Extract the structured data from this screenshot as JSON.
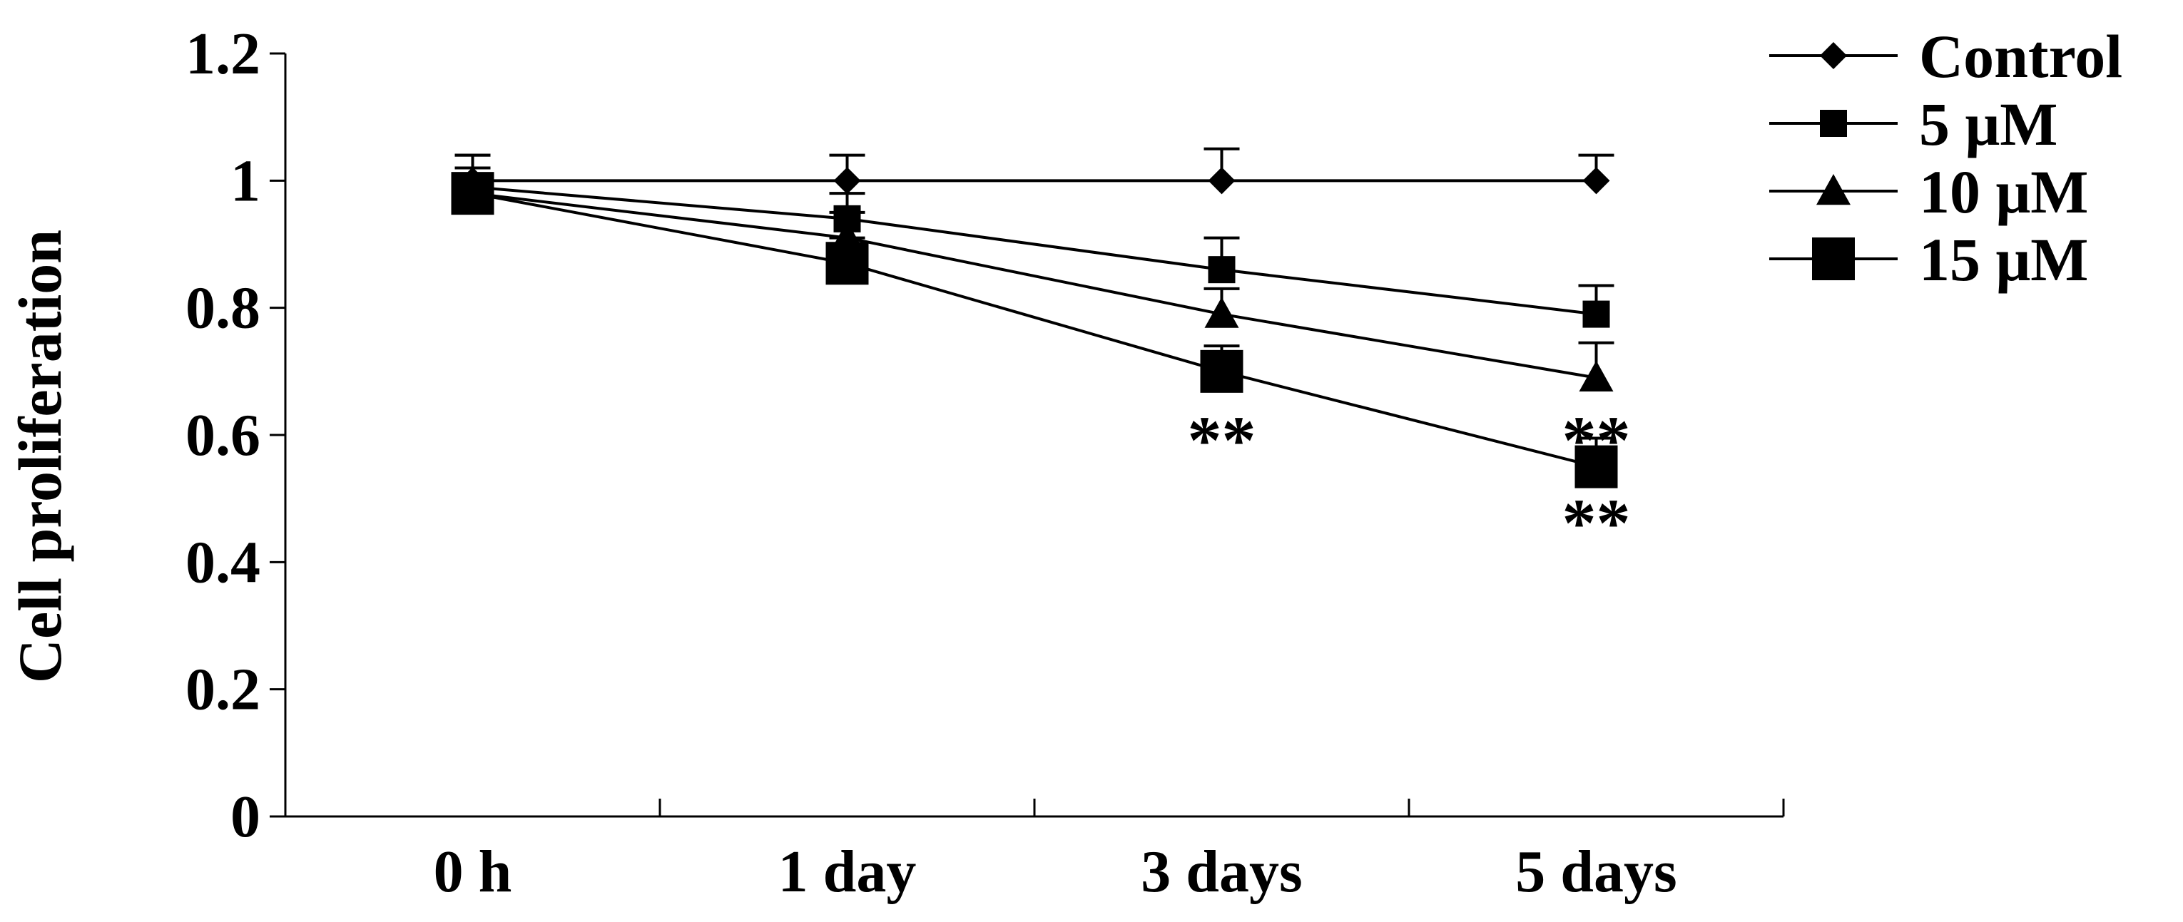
{
  "chart_data": {
    "type": "line",
    "title": "",
    "xlabel": "",
    "ylabel": "Cell proliferation",
    "categories": [
      "0 h",
      "1 day",
      "3 days",
      "5 days"
    ],
    "ylim": [
      0,
      1.2
    ],
    "yticks": [
      "0",
      "0.2",
      "0.4",
      "0.6",
      "0.8",
      "1",
      "1.2"
    ],
    "grid": false,
    "legend_position": "top-right",
    "series": [
      {
        "name": "Control",
        "marker": "diamond",
        "values": [
          1.0,
          1.0,
          1.0,
          1.0
        ],
        "errors": [
          0.04,
          0.04,
          0.05,
          0.04
        ]
      },
      {
        "name": "5 μM",
        "marker": "square",
        "values": [
          0.99,
          0.94,
          0.86,
          0.79
        ],
        "errors": [
          0.05,
          0.04,
          0.05,
          0.045
        ]
      },
      {
        "name": "10 μM",
        "marker": "triangle",
        "values": [
          0.98,
          0.91,
          0.79,
          0.69
        ],
        "errors": [
          0.04,
          0.04,
          0.04,
          0.055
        ]
      },
      {
        "name": "15 μM",
        "marker": "big-square",
        "values": [
          0.98,
          0.87,
          0.7,
          0.55
        ],
        "errors": [
          0.04,
          0.04,
          0.04,
          0.045
        ]
      }
    ],
    "annotations": [
      {
        "text": "**",
        "category": "3 days",
        "value": 0.6
      },
      {
        "text": "**",
        "category": "5 days",
        "value": 0.6
      },
      {
        "text": "**",
        "category": "5 days",
        "value": 0.47
      }
    ]
  }
}
